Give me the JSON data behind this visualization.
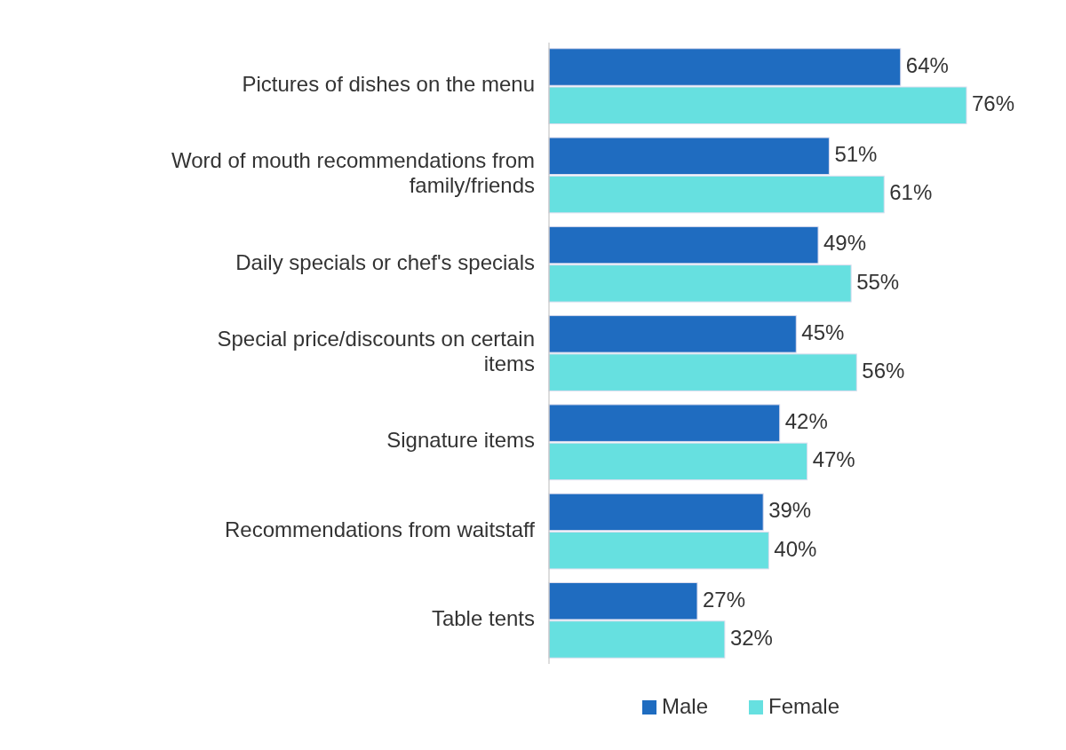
{
  "chart_data": {
    "type": "bar",
    "orientation": "horizontal",
    "categories": [
      "Pictures of dishes on the menu",
      "Word of mouth recommendations from family/friends",
      "Daily specials or chef's specials",
      "Special price/discounts on certain items",
      "Signature items",
      "Recommendations from waitstaff",
      "Table tents"
    ],
    "series": [
      {
        "name": "Male",
        "color": "#1f6cc0",
        "values": [
          64,
          51,
          49,
          45,
          42,
          39,
          27
        ],
        "value_labels": [
          "64%",
          "51%",
          "49%",
          "45%",
          "42%",
          "39%",
          "27%"
        ]
      },
      {
        "name": "Female",
        "color": "#66e0e0",
        "values": [
          76,
          61,
          55,
          56,
          47,
          40,
          32
        ],
        "value_labels": [
          "76%",
          "61%",
          "55%",
          "56%",
          "47%",
          "40%",
          "32%"
        ]
      }
    ],
    "legend": "bottom"
  }
}
